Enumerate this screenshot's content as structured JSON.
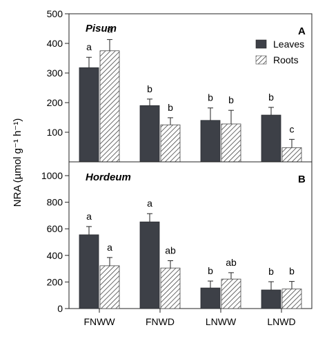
{
  "chart_data": [
    {
      "type": "bar",
      "panel_letter": "A",
      "title": "Pisum",
      "categories": [
        "FNWW",
        "FNWD",
        "LNWW",
        "LNWD"
      ],
      "ylim": [
        0,
        500
      ],
      "yticks": [
        0,
        100,
        200,
        300,
        400,
        500
      ],
      "legend_placement": "top-right",
      "grid": false,
      "series": [
        {
          "name": "Leaves",
          "values": [
            318,
            190,
            140,
            158
          ],
          "errors": [
            35,
            22,
            42,
            26
          ],
          "labels": [
            "a",
            "b",
            "b",
            "b"
          ],
          "color": "#3d4047",
          "pattern": "solid"
        },
        {
          "name": "Roots",
          "values": [
            375,
            125,
            128,
            48
          ],
          "errors": [
            38,
            24,
            46,
            28
          ],
          "labels": [
            "a",
            "b",
            "b",
            "c"
          ],
          "color": "#cfcfcf",
          "pattern": "hatched"
        }
      ]
    },
    {
      "type": "bar",
      "panel_letter": "B",
      "title": "Hordeum",
      "categories": [
        "FNWW",
        "FNWD",
        "LNWW",
        "LNWD"
      ],
      "ylim": [
        0,
        1000
      ],
      "yticks": [
        0,
        200,
        400,
        600,
        800,
        1000
      ],
      "grid": false,
      "series": [
        {
          "name": "Leaves",
          "values": [
            555,
            652,
            155,
            140
          ],
          "errors": [
            62,
            62,
            52,
            62
          ],
          "labels": [
            "a",
            "a",
            "b",
            "b"
          ],
          "color": "#3d4047",
          "pattern": "solid"
        },
        {
          "name": "Roots",
          "values": [
            322,
            305,
            222,
            147
          ],
          "errors": [
            62,
            55,
            48,
            57
          ],
          "labels": [
            "a",
            "ab",
            "ab",
            "b"
          ],
          "color": "#cfcfcf",
          "pattern": "hatched"
        }
      ]
    }
  ],
  "ylabel": "NRA (µmol g⁻¹ h⁻¹)"
}
